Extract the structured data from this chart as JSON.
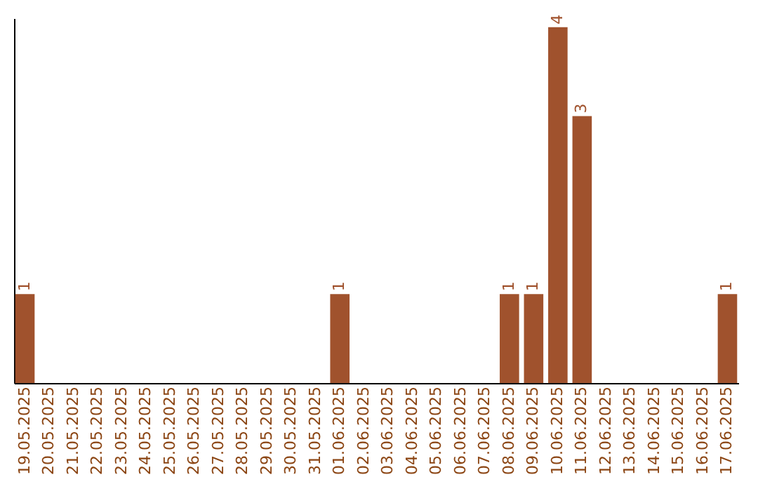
{
  "chart_data": {
    "type": "bar",
    "categories": [
      "19.05.2025",
      "20.05.2025",
      "21.05.2025",
      "22.05.2025",
      "23.05.2025",
      "24.05.2025",
      "25.05.2025",
      "26.05.2025",
      "27.05.2025",
      "28.05.2025",
      "29.05.2025",
      "30.05.2025",
      "31.05.2025",
      "01.06.2025",
      "02.06.2025",
      "03.06.2025",
      "04.06.2025",
      "05.06.2025",
      "06.06.2025",
      "07.06.2025",
      "08.06.2025",
      "09.06.2025",
      "10.06.2025",
      "11.06.2025",
      "12.06.2025",
      "13.06.2025",
      "14.06.2025",
      "15.06.2025",
      "16.06.2025",
      "17.06.2025"
    ],
    "values": [
      1,
      0,
      0,
      0,
      0,
      0,
      0,
      0,
      0,
      0,
      0,
      0,
      0,
      1,
      0,
      0,
      0,
      0,
      0,
      0,
      1,
      1,
      4,
      3,
      0,
      0,
      0,
      0,
      0,
      1
    ],
    "value_labels": [
      "1",
      null,
      null,
      null,
      null,
      null,
      null,
      null,
      null,
      null,
      null,
      null,
      null,
      "1",
      null,
      null,
      null,
      null,
      null,
      null,
      "1",
      "1",
      "4",
      "3",
      null,
      null,
      null,
      null,
      null,
      "1"
    ],
    "color": "#a0522d",
    "ylim": [
      0,
      4.1
    ],
    "tick_labels": "x",
    "grid": false
  }
}
